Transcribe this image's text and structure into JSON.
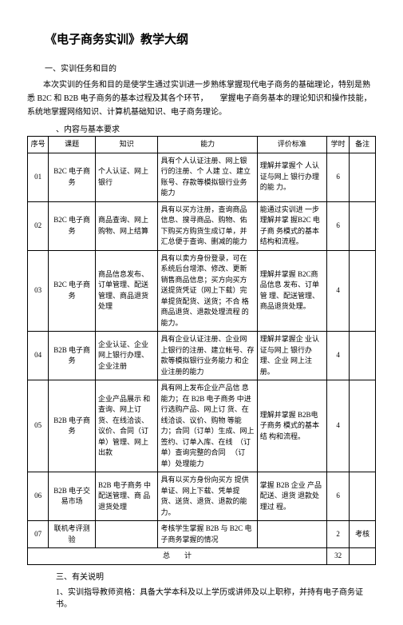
{
  "title": "《电子商务实训》教学大纲",
  "section1_heading": "一、实训任务和目的",
  "intro_para": "本次实训的任务和目的是使学生通过实训进一步熟练掌握现代电子商务的基础理论，特别是熟悉 B2C 和 B2B 电子商务的基本过程及其各个环节，　　掌握电子商务基本的理论知识和操作技能，　系统地掌握网络知识、计算机基础知识、电子商务理论。",
  "content_req": "、内容与基本要求",
  "headers": {
    "seq": "序号",
    "topic": "课题",
    "knowledge": "知识",
    "ability": "能力",
    "eval": "评价标准",
    "hours": "学时",
    "remark": "备注"
  },
  "rows": [
    {
      "seq": "01",
      "topic": "B2C 电子商务",
      "knowledge": "个人认证、网上银行",
      "ability": "具有个人认证注册、网上银 行的注册、个 人建 立、建立 账号、存款等模拟银行业务 能力",
      "eval": "理解并掌握个 人认证与网上 银行办理的能 力。",
      "hours": "6",
      "remark": ""
    },
    {
      "seq": "02",
      "topic": "B2C 电子商务",
      "knowledge": "商品查询、网上购物、网上结算",
      "ability": "具有以买方注册，查询商品 信息、搜寻商品、购物、佑 下购买方购货生成订单，并 汇总便于查询、删减的能力",
      "eval": "能通过实训进 一步理解并掌 握B2C 电子商 务模式的基本 结构和流程。",
      "hours": "6",
      "remark": ""
    },
    {
      "seq": "03",
      "topic": "B2C 电子商务",
      "knowledge": "商品信息发布、订单管理、配送管理、商品退货处理",
      "ability": "具有以卖方身份登录，可在 系统后台增添、修改、更新 销售商品信息；买方向买方 送提货凭证（网上下载）完 单提货配货、送货；不合 格商品退货、退款处理流程 的能力。",
      "eval": "理解并掌握 B2C商品信息 发布、订单管 理、配送管理、商品退货处理。",
      "hours": "4",
      "remark": ""
    },
    {
      "seq": "04",
      "topic": "B2B 电子商务",
      "knowledge": "企业认证、企业网上银行办理、企业注册",
      "ability": "具有企业认证注册、企业网 上银行的注册、建立帐号、存款等模拟银行业务能力 和企业注册的能力",
      "eval": "理解并掌握企 业认证与网上 银行办理、企业 网上注册。",
      "hours": "4",
      "remark": ""
    },
    {
      "seq": "05",
      "topic": "B2B 电子商务",
      "knowledge": "企业产品展示 和查询、网上订货、在线洽谈、议价、合同（订单）管理、网上出款",
      "ability": "具有网上发布企业产品信 息能力；在 B2B 电子商务 中进行选购产品、网上订 货、在线洽谈、议价、购物 等能力；合同（订单）生成、网上签约、订单入库、在线　（订单）查询完整的合同 　（订单）处理能力",
      "eval": "理解并掌握 B2B电子商务 模式的基本结 构和流程。",
      "hours": "4",
      "remark": ""
    },
    {
      "seq": "06",
      "topic": "B2B 电子交易市场",
      "knowledge": "B2B 电子商务 中配送管理、商 品退货处理",
      "ability": "具有以买方身份向买方 提供单证、网上下载、凭单提 货、送货、退货、退款的能 力。",
      "eval": "掌握 B2B 企业 产品配送、退货 退款处理过 程。",
      "hours": "6",
      "remark": ""
    },
    {
      "seq": "07",
      "topic": "联机考评测验",
      "knowledge": "",
      "ability": "考核学生掌握 B2B 与 B2C 电子商务掌握的情况",
      "eval": "",
      "hours": "2",
      "remark": "考核"
    }
  ],
  "total_label": "总　　计",
  "total_hours": "32",
  "notes_heading": "三、有关说明",
  "note1": "1、实训指导教师资格：具备大学本科及以上学历或讲师及以上职称，并持有电子商务证书。"
}
